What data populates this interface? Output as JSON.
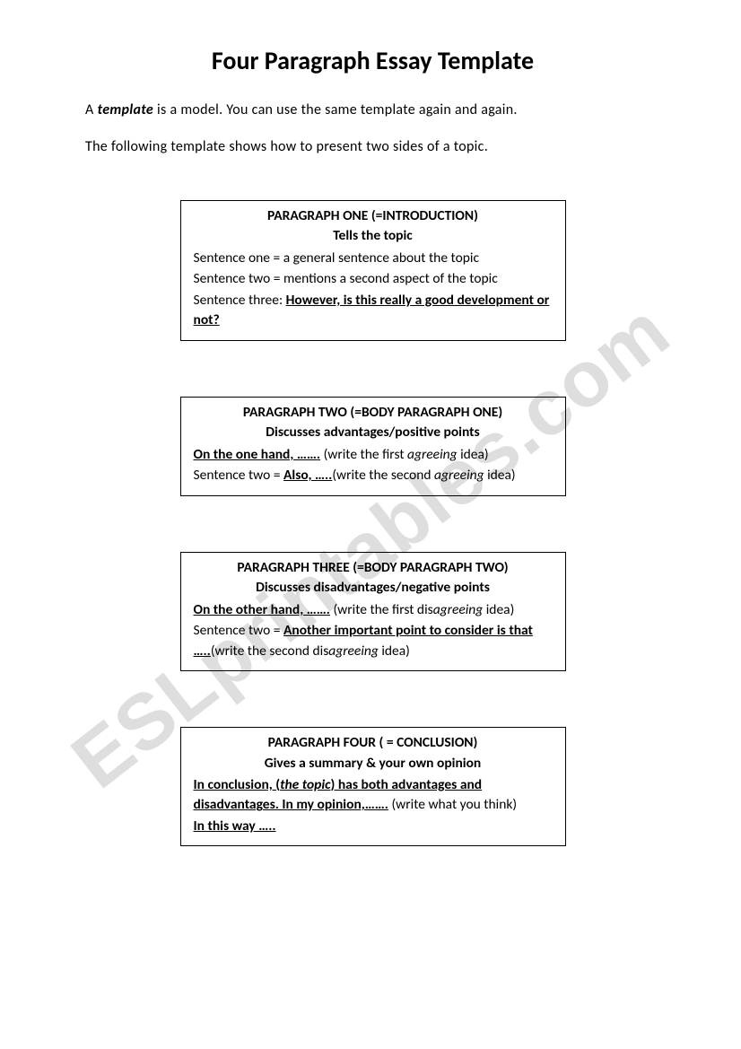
{
  "title": "Four Paragraph Essay Template",
  "intro1_pre": "A ",
  "intro1_em": "template",
  "intro1_post": " is a model. You can use the same template again and again.",
  "intro2": "The following template shows how to present two sides of a topic.",
  "watermark": "ESLprintables.com",
  "boxes": [
    {
      "heading": "PARAGRAPH ONE (=INTRODUCTION)",
      "sub": "Tells the topic",
      "lines": [
        [
          {
            "t": "Sentence one = a general sentence about the topic"
          }
        ],
        [
          {
            "t": "Sentence two = mentions a second aspect of the topic"
          }
        ],
        [
          {
            "t": "Sentence three: "
          },
          {
            "t": "However, is this really a good development or not?",
            "u": true,
            "b": true
          }
        ]
      ]
    },
    {
      "heading": "PARAGRAPH TWO (=BODY PARAGRAPH ONE)",
      "sub": "Discusses advantages/positive points",
      "lines": [
        [
          {
            "t": "On the one hand, …….",
            "u": true,
            "b": true
          },
          {
            "t": " (write the first "
          },
          {
            "t": "agreeing",
            "i": true
          },
          {
            "t": " idea)"
          }
        ],
        [
          {
            "t": "Sentence two = "
          },
          {
            "t": "Also, …..",
            "u": true,
            "b": true
          },
          {
            "t": "(write the second "
          },
          {
            "t": "agreeing",
            "i": true
          },
          {
            "t": " idea)"
          }
        ]
      ]
    },
    {
      "heading": "PARAGRAPH THREE (=BODY PARAGRAPH TWO)",
      "sub": "Discusses disadvantages/negative points",
      "lines": [
        [
          {
            "t": "On the other hand, …….",
            "u": true,
            "b": true
          },
          {
            "t": " (write the first dis"
          },
          {
            "t": "agreeing",
            "i": true
          },
          {
            "t": " idea)"
          }
        ],
        [
          {
            "t": "Sentence two = "
          },
          {
            "t": "Another important point to consider is that …..",
            "u": true,
            "b": true
          },
          {
            "t": "(write the second dis"
          },
          {
            "t": "agreeing",
            "i": true
          },
          {
            "t": " idea)"
          }
        ]
      ]
    },
    {
      "heading": "PARAGRAPH FOUR ( = CONCLUSION)",
      "sub": "Gives a summary & your own opinion",
      "lines": [
        [
          {
            "t": "In conclusion, (",
            "u": true,
            "b": true
          },
          {
            "t": "the topic",
            "u": true,
            "b": true,
            "i": true
          },
          {
            "t": ") has both advantages and disadvantages. In my opinion,…….",
            "u": true,
            "b": true
          },
          {
            "t": " (write what you think)"
          }
        ],
        [
          {
            "t": "In this way …..",
            "u": true,
            "b": true
          }
        ]
      ]
    }
  ],
  "colors": {
    "text": "#000000",
    "background": "#ffffff",
    "watermark": "#d9d9d9",
    "border": "#000000"
  }
}
